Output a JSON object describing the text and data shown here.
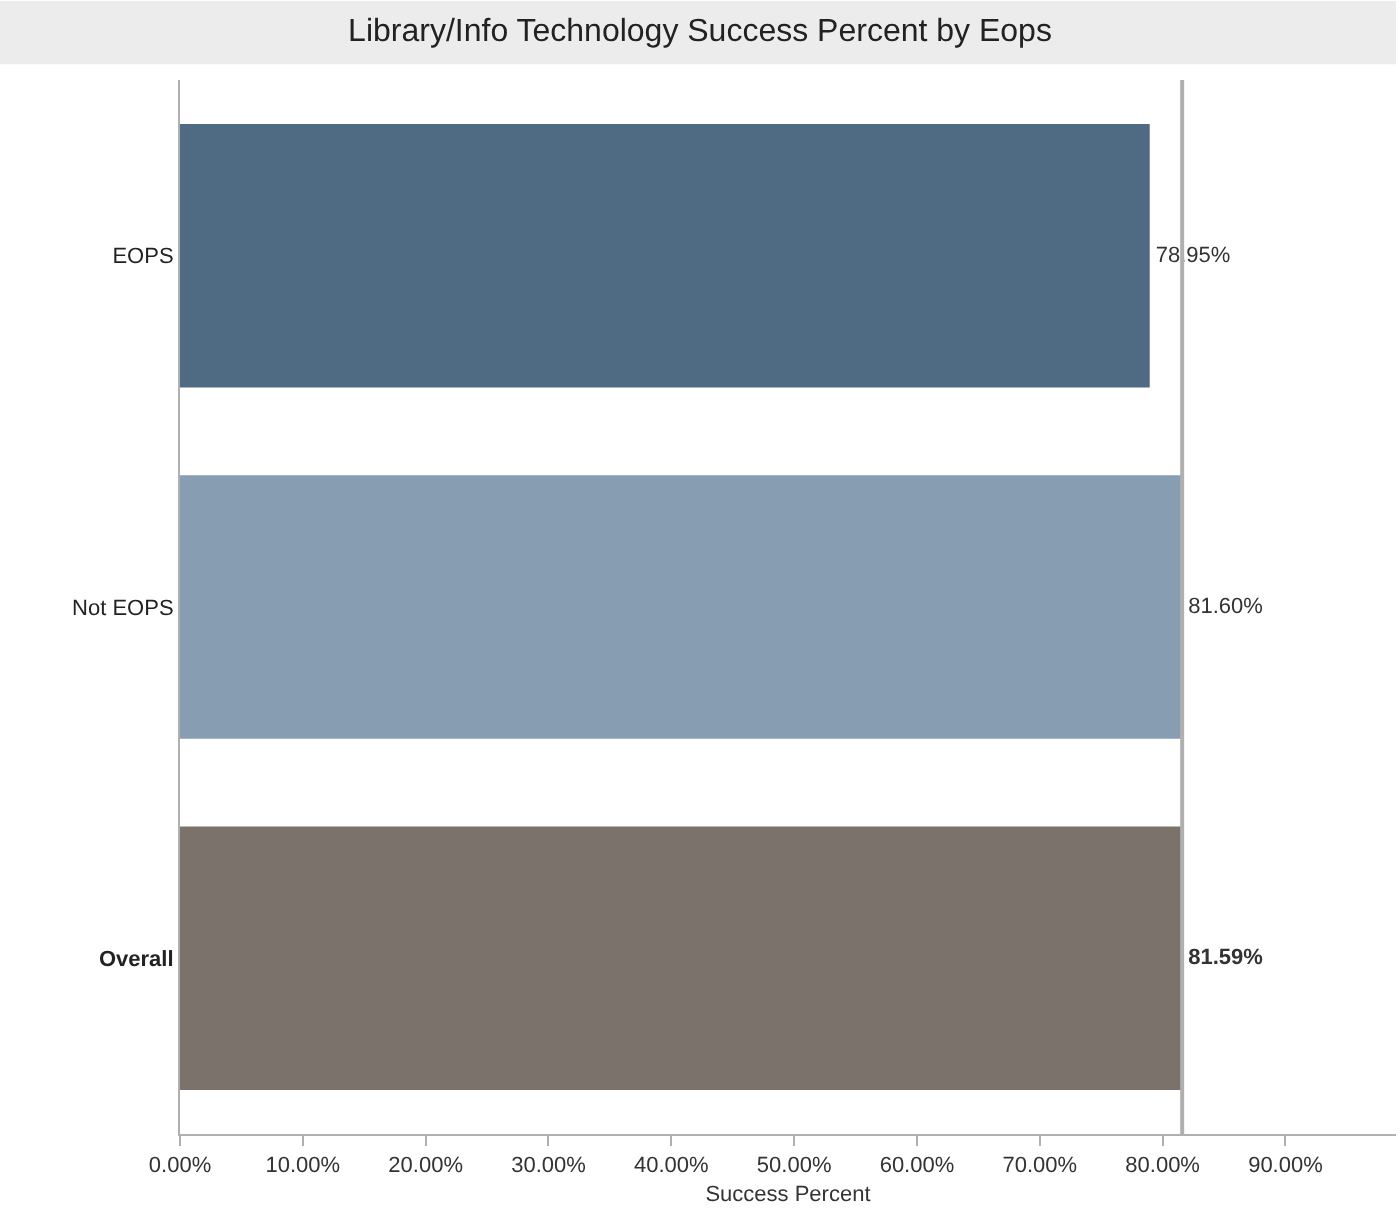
{
  "chart_data": {
    "type": "bar",
    "orientation": "horizontal",
    "title": "Library/Info Technology Success Percent by Eops",
    "xlabel": "Success Percent",
    "categories": [
      "EOPS",
      "Not EOPS",
      "Overall"
    ],
    "values": [
      78.95,
      81.6,
      81.59
    ],
    "colors": [
      "#4f6a83",
      "#879db2",
      "#7b736b"
    ],
    "value_labels": [
      "78.95%",
      "81.60%",
      "81.59%"
    ],
    "xlim": [
      0,
      99
    ],
    "xticks": [
      {
        "value": 0,
        "label": "0.00%"
      },
      {
        "value": 10,
        "label": "10.00%"
      },
      {
        "value": 20,
        "label": "20.00%"
      },
      {
        "value": 30,
        "label": "30.00%"
      },
      {
        "value": 40,
        "label": "40.00%"
      },
      {
        "value": 50,
        "label": "50.00%"
      },
      {
        "value": 60,
        "label": "60.00%"
      },
      {
        "value": 70,
        "label": "70.00%"
      },
      {
        "value": 80,
        "label": "80.00%"
      },
      {
        "value": 90,
        "label": "90.00%"
      }
    ],
    "ref_lines": [
      {
        "axis": "x",
        "value": 81.59,
        "label": null,
        "color": "#b0b0b0"
      }
    ],
    "legend": false
  }
}
